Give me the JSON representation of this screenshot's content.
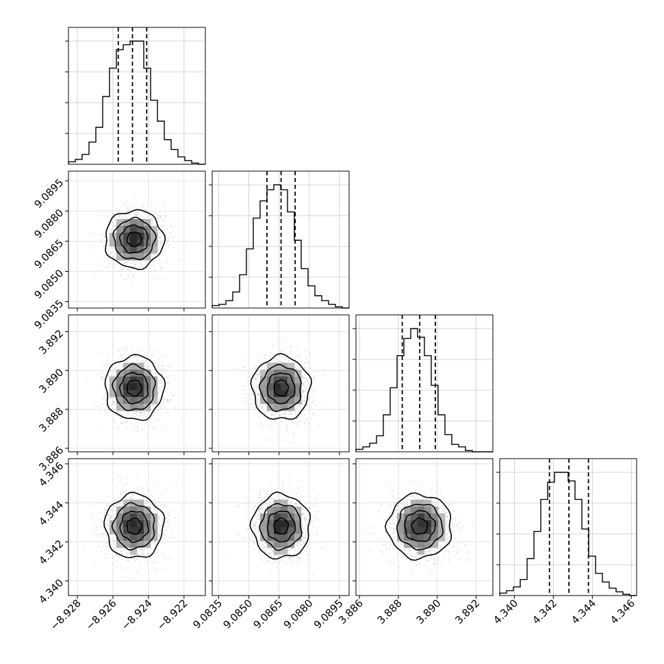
{
  "chart_data": {
    "type": "corner",
    "parameters": [
      {
        "range": [
          -8.9285,
          -8.9208
        ],
        "ticks": [
          -8.928,
          -8.926,
          -8.924,
          -8.922
        ],
        "tick_labels": [
          "−8.928",
          "−8.926",
          "−8.924",
          "−8.922"
        ],
        "mean": -8.9248,
        "sigma": 0.0008,
        "quantiles": [
          -8.9257,
          -8.9249,
          -8.9241
        ],
        "hist": [
          0.02,
          0.04,
          0.08,
          0.18,
          0.3,
          0.55,
          0.78,
          0.93,
          0.97,
          1.0,
          1.0,
          0.78,
          0.52,
          0.35,
          0.2,
          0.12,
          0.06,
          0.03,
          0.01,
          0.0
        ]
      },
      {
        "range": [
          9.08318,
          9.08998
        ],
        "ticks": [
          9.0835,
          9.085,
          9.0865,
          9.088,
          9.0895
        ],
        "tick_labels": [
          "9.0835",
          "9.0850",
          "9.0865",
          "9.0880",
          "9.0895"
        ],
        "mean": 9.0866,
        "sigma": 0.0007,
        "quantiles": [
          9.0859,
          9.0866,
          9.0873
        ],
        "hist": [
          0.02,
          0.03,
          0.06,
          0.13,
          0.27,
          0.48,
          0.73,
          0.87,
          0.96,
          1.0,
          0.96,
          0.78,
          0.55,
          0.32,
          0.18,
          0.1,
          0.06,
          0.03,
          0.01,
          0.0
        ]
      },
      {
        "range": [
          3.88582,
          3.89286
        ],
        "ticks": [
          3.886,
          3.888,
          3.89,
          3.892
        ],
        "tick_labels": [
          "3.886",
          "3.888",
          "3.890",
          "3.892"
        ],
        "mean": 3.8891,
        "sigma": 0.0008,
        "quantiles": [
          3.8882,
          3.8891,
          3.8899
        ],
        "hist": [
          0.02,
          0.04,
          0.07,
          0.13,
          0.3,
          0.52,
          0.78,
          0.92,
          1.0,
          0.93,
          0.78,
          0.54,
          0.3,
          0.14,
          0.06,
          0.04,
          0.01,
          0.0,
          0.0,
          0.0
        ]
      },
      {
        "range": [
          4.33925,
          4.34627
        ],
        "ticks": [
          4.34,
          4.342,
          4.344,
          4.346
        ],
        "tick_labels": [
          "4.340",
          "4.342",
          "4.344",
          "4.346"
        ],
        "mean": 4.3428,
        "sigma": 0.0008,
        "quantiles": [
          4.3418,
          4.3428,
          4.3438
        ],
        "hist": [
          0.02,
          0.04,
          0.07,
          0.13,
          0.3,
          0.52,
          0.78,
          0.92,
          1.0,
          1.0,
          0.93,
          0.78,
          0.54,
          0.32,
          0.18,
          0.11,
          0.06,
          0.03,
          0.01,
          0.0
        ]
      }
    ],
    "grid": true
  }
}
